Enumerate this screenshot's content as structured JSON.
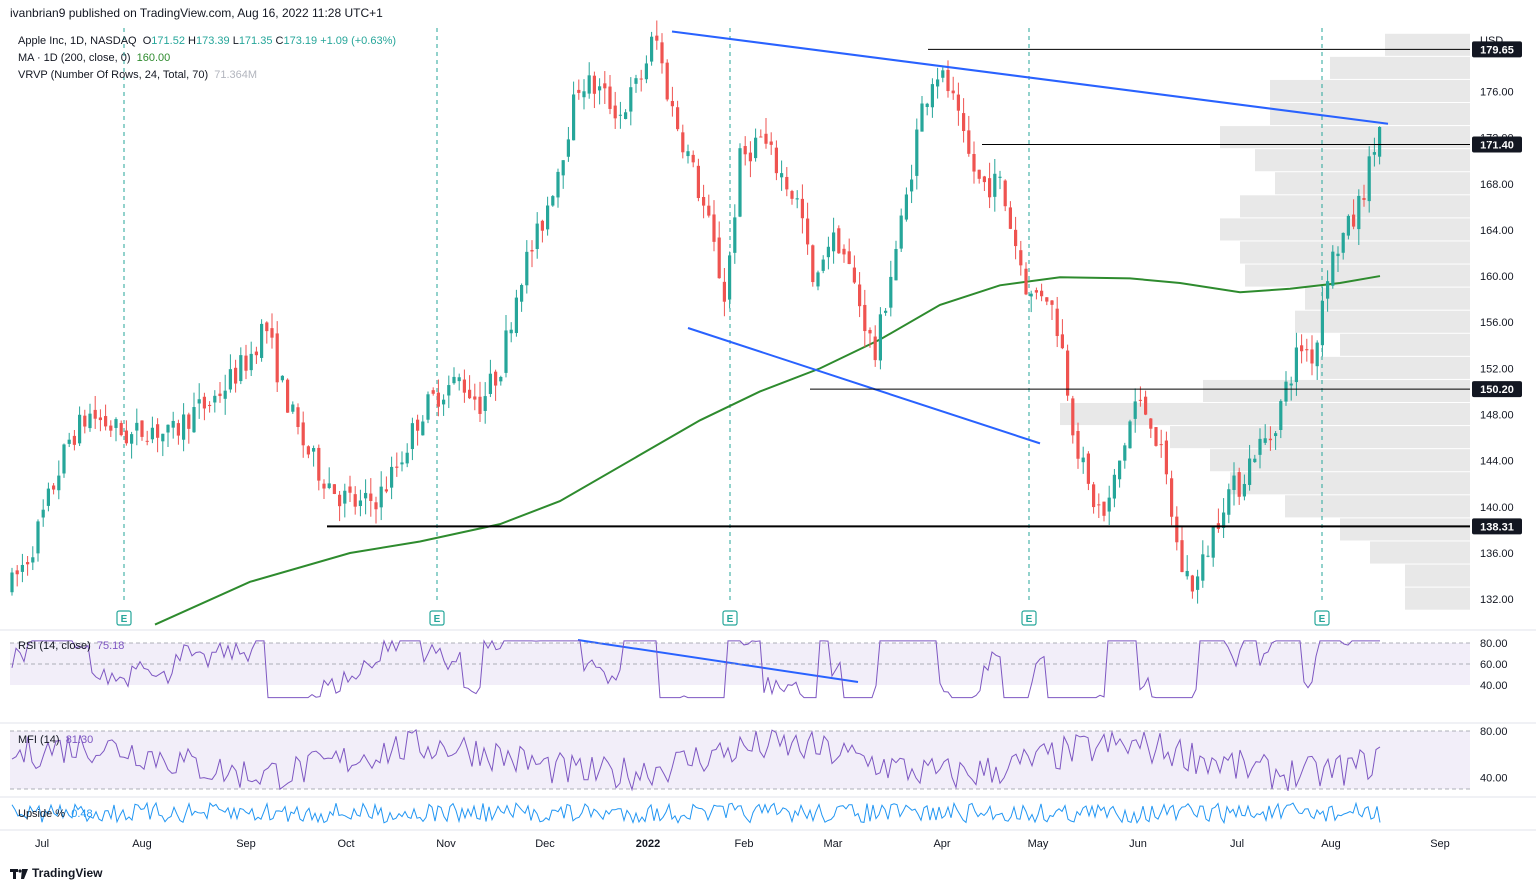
{
  "header": {
    "text": "ivanbrian9 published on TradingView.com, Aug 16, 2022 11:28 UTC+1"
  },
  "legend": {
    "symbol": "Apple Inc, 1D, NASDAQ",
    "open_label": "O",
    "open": "171.52",
    "high_label": "H",
    "high": "173.39",
    "low_label": "L",
    "low": "171.35",
    "close_label": "C",
    "close": "173.19",
    "change": "+1.09 (+0.63%)",
    "ma_label": "MA · 1D (200, close, 0)",
    "ma_value": "160.00",
    "vrvp_label": "VRVP (Number Of Rows, 24, Total, 70)",
    "vrvp_value": "71.364M"
  },
  "indicators": {
    "rsi_label": "RSI (14, close)",
    "rsi_value": "75.18",
    "mfi_label": "MFI (14)",
    "mfi_value": "81.30",
    "upside_label": "Upside %",
    "upside_value": "0.48"
  },
  "footer": {
    "brand": "TradingView"
  },
  "chart_data": {
    "type": "candlestick",
    "currency": "USD",
    "ylim": [
      129.5,
      181.5
    ],
    "price_ticks": [
      176,
      172,
      168,
      164,
      160,
      156,
      152,
      148,
      144,
      140,
      136,
      132
    ],
    "price_tick_labels": [
      "176.00",
      "172.00",
      "168.00",
      "164.00",
      "160.00",
      "156.00",
      "152.00",
      "148.00",
      "144.00",
      "140.00",
      "136.00",
      "132.00"
    ],
    "x_labels": [
      "Jul",
      "Aug",
      "Sep",
      "Oct",
      "Nov",
      "Dec",
      "2022",
      "Feb",
      "Mar",
      "Apr",
      "May",
      "Jun",
      "Jul",
      "Aug",
      "Sep"
    ],
    "horizontal_levels": [
      {
        "price": 179.65,
        "label": "179.65"
      },
      {
        "price": 171.4,
        "label": "171.40"
      },
      {
        "price": 150.2,
        "label": "150.20"
      },
      {
        "price": 138.31,
        "label": "138.31"
      }
    ],
    "earnings_label": "E",
    "rsi": {
      "levels": [
        80,
        60,
        40
      ],
      "level_labels": [
        "80.00",
        "60.00",
        "40.00"
      ]
    },
    "mfi": {
      "levels": [
        80,
        40
      ],
      "level_labels": [
        "80.00",
        "40.00"
      ]
    },
    "colors": {
      "up": "#26a69a",
      "down": "#ef5350",
      "ma": "#2e8b2e",
      "trend": "#2962ff",
      "level": "#000000",
      "indicator": "#7e57c2",
      "upside": "#2196f3"
    }
  }
}
